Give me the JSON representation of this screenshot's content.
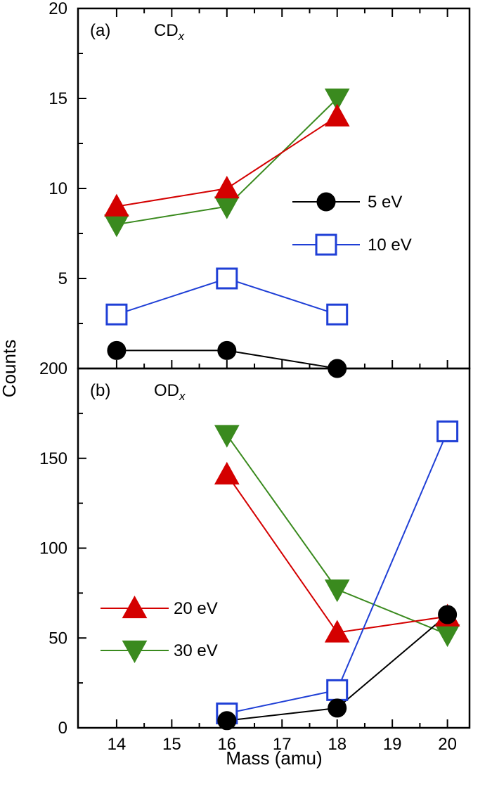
{
  "chart_data": [
    {
      "panel_label": "(a)",
      "panel_species_main": "CD",
      "panel_species_sub": "x",
      "type": "line",
      "ylim": [
        0,
        20
      ],
      "yticks": [
        "0",
        "5",
        "10",
        "15",
        "20"
      ],
      "series": [
        {
          "name": "5 eV",
          "marker": "circle-filled",
          "color": "#000000",
          "x": [
            14,
            16,
            18
          ],
          "values": [
            1,
            1,
            0
          ]
        },
        {
          "name": "10 eV",
          "marker": "square-open",
          "color": "#1f3fd6",
          "x": [
            14,
            16,
            18
          ],
          "values": [
            3,
            5,
            3
          ]
        },
        {
          "name": "20 eV",
          "marker": "triangle-up-filled",
          "color": "#d40000",
          "x": [
            14,
            16,
            18
          ],
          "values": [
            9,
            10,
            14
          ]
        },
        {
          "name": "30 eV",
          "marker": "triangle-down-filled",
          "color": "#3a8a1e",
          "x": [
            14,
            16,
            18
          ],
          "values": [
            8,
            9,
            15
          ]
        }
      ],
      "legend": {
        "placement": "right-middle",
        "entries": [
          "5 eV",
          "10 eV"
        ]
      }
    },
    {
      "panel_label": "(b)",
      "panel_species_main": "OD",
      "panel_species_sub": "x",
      "type": "line",
      "ylim": [
        0,
        200
      ],
      "yticks": [
        "0",
        "50",
        "100",
        "150",
        "200"
      ],
      "series": [
        {
          "name": "5 eV",
          "marker": "circle-filled",
          "color": "#000000",
          "x": [
            16,
            18,
            20
          ],
          "values": [
            4,
            11,
            63
          ]
        },
        {
          "name": "10 eV",
          "marker": "square-open",
          "color": "#1f3fd6",
          "x": [
            16,
            18,
            20
          ],
          "values": [
            8,
            21,
            165
          ]
        },
        {
          "name": "20 eV",
          "marker": "triangle-up-filled",
          "color": "#d40000",
          "x": [
            16,
            18,
            20
          ],
          "values": [
            141,
            53,
            62
          ]
        },
        {
          "name": "30 eV",
          "marker": "triangle-down-filled",
          "color": "#3a8a1e",
          "x": [
            16,
            18,
            20
          ],
          "values": [
            163,
            77,
            52
          ]
        }
      ],
      "legend": {
        "placement": "left-lower",
        "entries": [
          "20 eV",
          "30 eV"
        ]
      }
    }
  ],
  "xaxis": {
    "label": "Mass (amu)",
    "xlim": [
      13.3,
      20.4
    ],
    "ticks": [
      14,
      15,
      16,
      17,
      18,
      19,
      20
    ],
    "tick_labels": [
      "14",
      "15",
      "16",
      "17",
      "18",
      "19",
      "20"
    ]
  },
  "yaxis_label": "Counts"
}
